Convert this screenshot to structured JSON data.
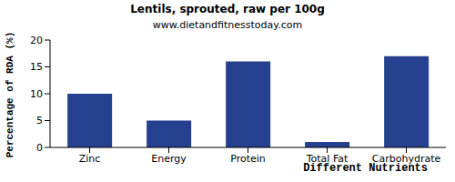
{
  "chart_data": {
    "type": "bar",
    "title": "Lentils, sprouted, raw per 100g",
    "subtitle": "www.dietandfitnesstoday.com",
    "x_label": "Different Nutrients",
    "y_label": "Percentage of RDA (%)",
    "categories": [
      "Zinc",
      "Energy",
      "Protein",
      "Total Fat",
      "Carbohydrate"
    ],
    "values": [
      10,
      5,
      16,
      1,
      17
    ],
    "color": "#24408e",
    "ylim": [
      0,
      20
    ],
    "yticks": [
      0,
      5,
      10,
      15,
      20
    ],
    "grid": false
  }
}
